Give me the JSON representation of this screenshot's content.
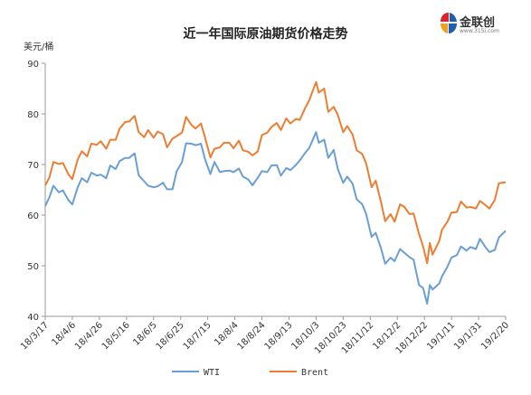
{
  "title": "近一年国际原油期货价格走势",
  "logo": {
    "name": "金联创",
    "sub": "www.315i.com"
  },
  "colors": {
    "wti": "#6a9fd6",
    "brent": "#ed7d31",
    "axis": "#9a9a9a",
    "brand_red": "#d9232d",
    "brand_blue": "#1f5fb0"
  },
  "chart_data": {
    "type": "line",
    "title": "近一年国际原油期货价格走势",
    "ylabel": "美元/桶",
    "xlabel": "",
    "ylim": [
      40,
      90
    ],
    "yticks": [
      40,
      50,
      60,
      70,
      80,
      90
    ],
    "grid": false,
    "legend_position": "bottom",
    "x_ticks": [
      "18/3/17",
      "18/4/6",
      "18/4/26",
      "18/5/16",
      "18/6/5",
      "18/6/25",
      "18/7/15",
      "18/8/4",
      "18/8/24",
      "18/9/13",
      "18/10/3",
      "18/10/23",
      "18/11/12",
      "18/12/2",
      "18/12/22",
      "19/1/11",
      "19/1/31",
      "19/2/20"
    ],
    "x_start": "2018-03-17",
    "x_end": "2019-02-20",
    "series": [
      {
        "name": "WTI",
        "color": "#6a9fd6",
        "points": [
          [
            "2018-03-17",
            61.8
          ],
          [
            "2018-03-20",
            63.5
          ],
          [
            "2018-03-23",
            65.8
          ],
          [
            "2018-03-27",
            64.5
          ],
          [
            "2018-03-30",
            64.9
          ],
          [
            "2018-04-03",
            63.0
          ],
          [
            "2018-04-06",
            62.1
          ],
          [
            "2018-04-10",
            65.5
          ],
          [
            "2018-04-13",
            67.3
          ],
          [
            "2018-04-17",
            66.5
          ],
          [
            "2018-04-20",
            68.4
          ],
          [
            "2018-04-24",
            67.8
          ],
          [
            "2018-04-27",
            68.0
          ],
          [
            "2018-05-01",
            67.3
          ],
          [
            "2018-05-04",
            69.8
          ],
          [
            "2018-05-08",
            69.1
          ],
          [
            "2018-05-11",
            70.7
          ],
          [
            "2018-05-15",
            71.3
          ],
          [
            "2018-05-18",
            71.3
          ],
          [
            "2018-05-22",
            72.2
          ],
          [
            "2018-05-25",
            67.9
          ],
          [
            "2018-05-29",
            66.7
          ],
          [
            "2018-06-01",
            65.8
          ],
          [
            "2018-06-05",
            65.5
          ],
          [
            "2018-06-08",
            65.7
          ],
          [
            "2018-06-12",
            66.4
          ],
          [
            "2018-06-15",
            65.1
          ],
          [
            "2018-06-19",
            65.1
          ],
          [
            "2018-06-22",
            68.6
          ],
          [
            "2018-06-26",
            70.5
          ],
          [
            "2018-06-29",
            74.2
          ],
          [
            "2018-07-03",
            74.1
          ],
          [
            "2018-07-06",
            73.8
          ],
          [
            "2018-07-10",
            74.1
          ],
          [
            "2018-07-13",
            71.0
          ],
          [
            "2018-07-17",
            68.1
          ],
          [
            "2018-07-20",
            70.5
          ],
          [
            "2018-07-24",
            68.5
          ],
          [
            "2018-07-27",
            68.7
          ],
          [
            "2018-07-31",
            68.8
          ],
          [
            "2018-08-03",
            68.5
          ],
          [
            "2018-08-07",
            69.2
          ],
          [
            "2018-08-10",
            67.6
          ],
          [
            "2018-08-14",
            67.0
          ],
          [
            "2018-08-17",
            65.9
          ],
          [
            "2018-08-21",
            67.4
          ],
          [
            "2018-08-24",
            68.7
          ],
          [
            "2018-08-28",
            68.5
          ],
          [
            "2018-08-31",
            69.8
          ],
          [
            "2018-09-04",
            69.9
          ],
          [
            "2018-09-07",
            67.8
          ],
          [
            "2018-09-11",
            69.3
          ],
          [
            "2018-09-14",
            68.9
          ],
          [
            "2018-09-18",
            69.9
          ],
          [
            "2018-09-21",
            70.8
          ],
          [
            "2018-09-25",
            72.3
          ],
          [
            "2018-09-28",
            73.3
          ],
          [
            "2018-10-03",
            76.4
          ],
          [
            "2018-10-05",
            74.3
          ],
          [
            "2018-10-09",
            74.9
          ],
          [
            "2018-10-12",
            71.3
          ],
          [
            "2018-10-16",
            72.9
          ],
          [
            "2018-10-19",
            69.1
          ],
          [
            "2018-10-23",
            66.4
          ],
          [
            "2018-10-26",
            67.6
          ],
          [
            "2018-10-30",
            66.2
          ],
          [
            "2018-11-02",
            63.1
          ],
          [
            "2018-11-06",
            62.2
          ],
          [
            "2018-11-09",
            60.2
          ],
          [
            "2018-11-13",
            55.7
          ],
          [
            "2018-11-16",
            56.5
          ],
          [
            "2018-11-20",
            53.4
          ],
          [
            "2018-11-23",
            50.4
          ],
          [
            "2018-11-27",
            51.6
          ],
          [
            "2018-11-30",
            50.9
          ],
          [
            "2018-12-04",
            53.3
          ],
          [
            "2018-12-07",
            52.6
          ],
          [
            "2018-12-11",
            51.7
          ],
          [
            "2018-12-14",
            51.2
          ],
          [
            "2018-12-18",
            46.2
          ],
          [
            "2018-12-21",
            45.6
          ],
          [
            "2018-12-24",
            42.5
          ],
          [
            "2018-12-26",
            46.2
          ],
          [
            "2018-12-28",
            45.3
          ],
          [
            "2019-01-02",
            46.5
          ],
          [
            "2019-01-04",
            47.9
          ],
          [
            "2019-01-08",
            49.8
          ],
          [
            "2019-01-11",
            51.6
          ],
          [
            "2019-01-15",
            52.1
          ],
          [
            "2019-01-18",
            53.8
          ],
          [
            "2019-01-22",
            53.0
          ],
          [
            "2019-01-25",
            53.7
          ],
          [
            "2019-01-29",
            53.3
          ],
          [
            "2019-02-01",
            55.3
          ],
          [
            "2019-02-05",
            53.7
          ],
          [
            "2019-02-08",
            52.7
          ],
          [
            "2019-02-12",
            53.1
          ],
          [
            "2019-02-15",
            55.6
          ],
          [
            "2019-02-20",
            56.9
          ]
        ]
      },
      {
        "name": "Brent",
        "color": "#ed7d31",
        "points": [
          [
            "2018-03-17",
            65.9
          ],
          [
            "2018-03-20",
            67.4
          ],
          [
            "2018-03-23",
            70.5
          ],
          [
            "2018-03-27",
            70.1
          ],
          [
            "2018-03-30",
            70.3
          ],
          [
            "2018-04-03",
            68.1
          ],
          [
            "2018-04-06",
            67.1
          ],
          [
            "2018-04-10",
            71.0
          ],
          [
            "2018-04-13",
            72.6
          ],
          [
            "2018-04-17",
            71.6
          ],
          [
            "2018-04-20",
            74.1
          ],
          [
            "2018-04-24",
            73.9
          ],
          [
            "2018-04-27",
            74.6
          ],
          [
            "2018-05-01",
            73.1
          ],
          [
            "2018-05-04",
            74.9
          ],
          [
            "2018-05-08",
            74.9
          ],
          [
            "2018-05-11",
            77.1
          ],
          [
            "2018-05-15",
            78.4
          ],
          [
            "2018-05-18",
            78.5
          ],
          [
            "2018-05-22",
            79.6
          ],
          [
            "2018-05-25",
            76.4
          ],
          [
            "2018-05-29",
            75.4
          ],
          [
            "2018-06-01",
            76.8
          ],
          [
            "2018-06-05",
            75.3
          ],
          [
            "2018-06-08",
            76.5
          ],
          [
            "2018-06-12",
            76.0
          ],
          [
            "2018-06-15",
            73.4
          ],
          [
            "2018-06-19",
            75.1
          ],
          [
            "2018-06-22",
            75.6
          ],
          [
            "2018-06-26",
            76.3
          ],
          [
            "2018-06-29",
            79.4
          ],
          [
            "2018-07-03",
            77.8
          ],
          [
            "2018-07-06",
            77.1
          ],
          [
            "2018-07-10",
            78.1
          ],
          [
            "2018-07-13",
            75.3
          ],
          [
            "2018-07-17",
            71.4
          ],
          [
            "2018-07-20",
            73.1
          ],
          [
            "2018-07-24",
            73.4
          ],
          [
            "2018-07-27",
            74.3
          ],
          [
            "2018-07-31",
            74.3
          ],
          [
            "2018-08-03",
            73.2
          ],
          [
            "2018-08-07",
            74.7
          ],
          [
            "2018-08-10",
            72.8
          ],
          [
            "2018-08-14",
            72.5
          ],
          [
            "2018-08-17",
            71.8
          ],
          [
            "2018-08-21",
            72.6
          ],
          [
            "2018-08-24",
            75.8
          ],
          [
            "2018-08-28",
            76.3
          ],
          [
            "2018-08-31",
            77.4
          ],
          [
            "2018-09-04",
            78.2
          ],
          [
            "2018-09-07",
            76.8
          ],
          [
            "2018-09-11",
            79.1
          ],
          [
            "2018-09-14",
            78.1
          ],
          [
            "2018-09-18",
            79.0
          ],
          [
            "2018-09-21",
            78.8
          ],
          [
            "2018-09-25",
            81.2
          ],
          [
            "2018-09-28",
            82.7
          ],
          [
            "2018-10-03",
            86.3
          ],
          [
            "2018-10-05",
            84.2
          ],
          [
            "2018-10-09",
            85.0
          ],
          [
            "2018-10-12",
            80.4
          ],
          [
            "2018-10-16",
            81.4
          ],
          [
            "2018-10-19",
            79.8
          ],
          [
            "2018-10-23",
            76.4
          ],
          [
            "2018-10-26",
            77.6
          ],
          [
            "2018-10-30",
            75.9
          ],
          [
            "2018-11-02",
            72.8
          ],
          [
            "2018-11-06",
            72.1
          ],
          [
            "2018-11-09",
            70.2
          ],
          [
            "2018-11-13",
            65.5
          ],
          [
            "2018-11-16",
            66.8
          ],
          [
            "2018-11-20",
            62.5
          ],
          [
            "2018-11-23",
            58.8
          ],
          [
            "2018-11-27",
            60.2
          ],
          [
            "2018-11-30",
            58.7
          ],
          [
            "2018-12-04",
            62.1
          ],
          [
            "2018-12-07",
            61.7
          ],
          [
            "2018-12-11",
            60.2
          ],
          [
            "2018-12-14",
            60.3
          ],
          [
            "2018-12-18",
            56.3
          ],
          [
            "2018-12-21",
            53.8
          ],
          [
            "2018-12-24",
            50.5
          ],
          [
            "2018-12-26",
            54.5
          ],
          [
            "2018-12-28",
            52.2
          ],
          [
            "2019-01-02",
            54.9
          ],
          [
            "2019-01-04",
            57.1
          ],
          [
            "2019-01-08",
            58.7
          ],
          [
            "2019-01-11",
            60.5
          ],
          [
            "2019-01-15",
            60.6
          ],
          [
            "2019-01-18",
            62.7
          ],
          [
            "2019-01-22",
            61.5
          ],
          [
            "2019-01-25",
            61.6
          ],
          [
            "2019-01-29",
            61.3
          ],
          [
            "2019-02-01",
            62.8
          ],
          [
            "2019-02-05",
            62.0
          ],
          [
            "2019-02-08",
            61.3
          ],
          [
            "2019-02-12",
            63.0
          ],
          [
            "2019-02-15",
            66.3
          ],
          [
            "2019-02-20",
            66.5
          ]
        ]
      }
    ]
  }
}
